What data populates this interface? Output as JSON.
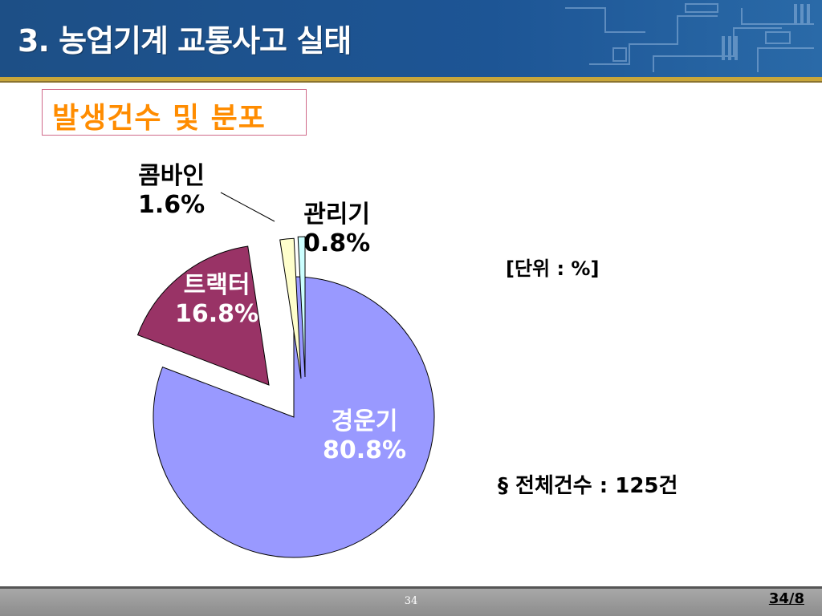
{
  "header": {
    "title": "3. 농업기계 교통사고 실태"
  },
  "section": {
    "title": "발생건수 및 분포"
  },
  "notes": {
    "unit": "[단위 : %]",
    "total": "§ 전체건수 : 125건"
  },
  "footer": {
    "slide_number": "34",
    "page_indicator": "34/8"
  },
  "colors": {
    "accent_orange": "#ff8c00",
    "header_blue": "#1d5595",
    "gold": "#c8a63a"
  },
  "chart_data": {
    "type": "pie",
    "title": "",
    "slices": [
      {
        "name": "경운기",
        "value": 80.8,
        "label": "80.8%",
        "color": "#9999ff",
        "exploded": false
      },
      {
        "name": "트랙터",
        "value": 16.8,
        "label": "16.8%",
        "color": "#993366",
        "exploded": true
      },
      {
        "name": "콤바인",
        "value": 1.6,
        "label": "1.6%",
        "color": "#ffffcc",
        "exploded": true
      },
      {
        "name": "관리기",
        "value": 0.8,
        "label": "0.8%",
        "color": "#ccffff",
        "exploded": true
      }
    ]
  }
}
